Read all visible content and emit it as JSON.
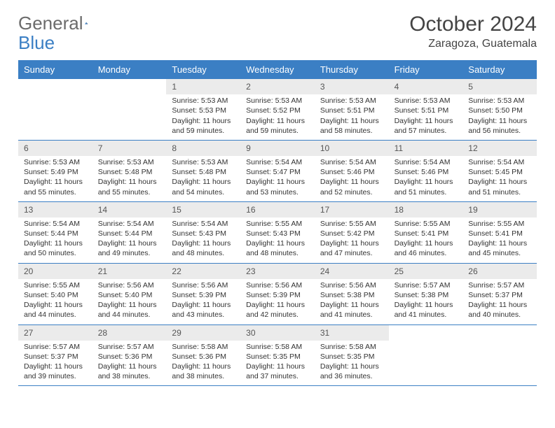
{
  "logo": {
    "text_gray": "General",
    "text_blue": "Blue"
  },
  "title": "October 2024",
  "location": "Zaragoza, Guatemala",
  "colors": {
    "header_bg": "#3b7fc4",
    "header_text": "#ffffff",
    "daynum_bg": "#ebebeb",
    "text": "#333333",
    "logo_gray": "#6b6b6b",
    "logo_blue": "#3b7fc4"
  },
  "day_names": [
    "Sunday",
    "Monday",
    "Tuesday",
    "Wednesday",
    "Thursday",
    "Friday",
    "Saturday"
  ],
  "weeks": [
    [
      null,
      null,
      {
        "n": "1",
        "sr": "Sunrise: 5:53 AM",
        "ss": "Sunset: 5:53 PM",
        "dl": "Daylight: 11 hours and 59 minutes."
      },
      {
        "n": "2",
        "sr": "Sunrise: 5:53 AM",
        "ss": "Sunset: 5:52 PM",
        "dl": "Daylight: 11 hours and 59 minutes."
      },
      {
        "n": "3",
        "sr": "Sunrise: 5:53 AM",
        "ss": "Sunset: 5:51 PM",
        "dl": "Daylight: 11 hours and 58 minutes."
      },
      {
        "n": "4",
        "sr": "Sunrise: 5:53 AM",
        "ss": "Sunset: 5:51 PM",
        "dl": "Daylight: 11 hours and 57 minutes."
      },
      {
        "n": "5",
        "sr": "Sunrise: 5:53 AM",
        "ss": "Sunset: 5:50 PM",
        "dl": "Daylight: 11 hours and 56 minutes."
      }
    ],
    [
      {
        "n": "6",
        "sr": "Sunrise: 5:53 AM",
        "ss": "Sunset: 5:49 PM",
        "dl": "Daylight: 11 hours and 55 minutes."
      },
      {
        "n": "7",
        "sr": "Sunrise: 5:53 AM",
        "ss": "Sunset: 5:48 PM",
        "dl": "Daylight: 11 hours and 55 minutes."
      },
      {
        "n": "8",
        "sr": "Sunrise: 5:53 AM",
        "ss": "Sunset: 5:48 PM",
        "dl": "Daylight: 11 hours and 54 minutes."
      },
      {
        "n": "9",
        "sr": "Sunrise: 5:54 AM",
        "ss": "Sunset: 5:47 PM",
        "dl": "Daylight: 11 hours and 53 minutes."
      },
      {
        "n": "10",
        "sr": "Sunrise: 5:54 AM",
        "ss": "Sunset: 5:46 PM",
        "dl": "Daylight: 11 hours and 52 minutes."
      },
      {
        "n": "11",
        "sr": "Sunrise: 5:54 AM",
        "ss": "Sunset: 5:46 PM",
        "dl": "Daylight: 11 hours and 51 minutes."
      },
      {
        "n": "12",
        "sr": "Sunrise: 5:54 AM",
        "ss": "Sunset: 5:45 PM",
        "dl": "Daylight: 11 hours and 51 minutes."
      }
    ],
    [
      {
        "n": "13",
        "sr": "Sunrise: 5:54 AM",
        "ss": "Sunset: 5:44 PM",
        "dl": "Daylight: 11 hours and 50 minutes."
      },
      {
        "n": "14",
        "sr": "Sunrise: 5:54 AM",
        "ss": "Sunset: 5:44 PM",
        "dl": "Daylight: 11 hours and 49 minutes."
      },
      {
        "n": "15",
        "sr": "Sunrise: 5:54 AM",
        "ss": "Sunset: 5:43 PM",
        "dl": "Daylight: 11 hours and 48 minutes."
      },
      {
        "n": "16",
        "sr": "Sunrise: 5:55 AM",
        "ss": "Sunset: 5:43 PM",
        "dl": "Daylight: 11 hours and 48 minutes."
      },
      {
        "n": "17",
        "sr": "Sunrise: 5:55 AM",
        "ss": "Sunset: 5:42 PM",
        "dl": "Daylight: 11 hours and 47 minutes."
      },
      {
        "n": "18",
        "sr": "Sunrise: 5:55 AM",
        "ss": "Sunset: 5:41 PM",
        "dl": "Daylight: 11 hours and 46 minutes."
      },
      {
        "n": "19",
        "sr": "Sunrise: 5:55 AM",
        "ss": "Sunset: 5:41 PM",
        "dl": "Daylight: 11 hours and 45 minutes."
      }
    ],
    [
      {
        "n": "20",
        "sr": "Sunrise: 5:55 AM",
        "ss": "Sunset: 5:40 PM",
        "dl": "Daylight: 11 hours and 44 minutes."
      },
      {
        "n": "21",
        "sr": "Sunrise: 5:56 AM",
        "ss": "Sunset: 5:40 PM",
        "dl": "Daylight: 11 hours and 44 minutes."
      },
      {
        "n": "22",
        "sr": "Sunrise: 5:56 AM",
        "ss": "Sunset: 5:39 PM",
        "dl": "Daylight: 11 hours and 43 minutes."
      },
      {
        "n": "23",
        "sr": "Sunrise: 5:56 AM",
        "ss": "Sunset: 5:39 PM",
        "dl": "Daylight: 11 hours and 42 minutes."
      },
      {
        "n": "24",
        "sr": "Sunrise: 5:56 AM",
        "ss": "Sunset: 5:38 PM",
        "dl": "Daylight: 11 hours and 41 minutes."
      },
      {
        "n": "25",
        "sr": "Sunrise: 5:57 AM",
        "ss": "Sunset: 5:38 PM",
        "dl": "Daylight: 11 hours and 41 minutes."
      },
      {
        "n": "26",
        "sr": "Sunrise: 5:57 AM",
        "ss": "Sunset: 5:37 PM",
        "dl": "Daylight: 11 hours and 40 minutes."
      }
    ],
    [
      {
        "n": "27",
        "sr": "Sunrise: 5:57 AM",
        "ss": "Sunset: 5:37 PM",
        "dl": "Daylight: 11 hours and 39 minutes."
      },
      {
        "n": "28",
        "sr": "Sunrise: 5:57 AM",
        "ss": "Sunset: 5:36 PM",
        "dl": "Daylight: 11 hours and 38 minutes."
      },
      {
        "n": "29",
        "sr": "Sunrise: 5:58 AM",
        "ss": "Sunset: 5:36 PM",
        "dl": "Daylight: 11 hours and 38 minutes."
      },
      {
        "n": "30",
        "sr": "Sunrise: 5:58 AM",
        "ss": "Sunset: 5:35 PM",
        "dl": "Daylight: 11 hours and 37 minutes."
      },
      {
        "n": "31",
        "sr": "Sunrise: 5:58 AM",
        "ss": "Sunset: 5:35 PM",
        "dl": "Daylight: 11 hours and 36 minutes."
      },
      null,
      null
    ]
  ]
}
